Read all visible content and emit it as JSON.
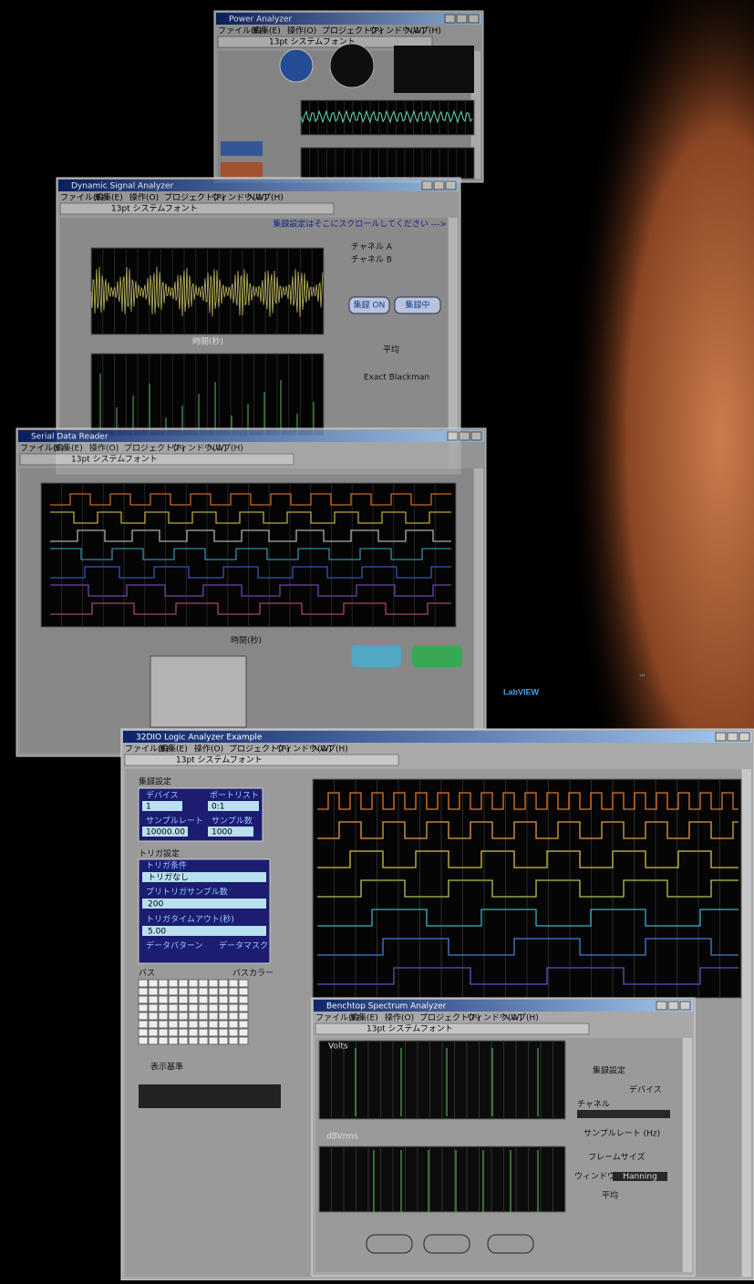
{
  "logo": {
    "name": "LabVIEW",
    "mark": "™"
  },
  "menu": [
    "ファイル(F)",
    "編集(E)",
    "操作(O)",
    "プロジェクト(P)",
    "ウィンドウ(W)",
    "ヘルプ(H)"
  ],
  "toolbar_font": "13pt システムフォント",
  "windows": [
    {
      "title": "Power Analyzer"
    },
    {
      "title": "Dynamic Signal Analyzer"
    },
    {
      "title": "Serial Data Reader"
    },
    {
      "title": "32DIO Logic Analyzer Example"
    },
    {
      "title": "Benchtop Spectrum Analyzer"
    }
  ],
  "dynamic": {
    "scroll_hint": "集録設定はそこにスクロールしてください --->",
    "channel_a": "チャネル A",
    "channel_b": "チャネル B",
    "start": "集録 ON",
    "status": "集録中",
    "average": "平均",
    "window": "Exact Blackman",
    "axis_time": "時間(秒)"
  },
  "logic": {
    "acq_title": "集録設定",
    "device": "デバイス",
    "port_list": "ポートリスト",
    "device_value": "1",
    "port_value": "0:1",
    "rate": "サンプルレート",
    "samples": "サンプル数",
    "rate_value": "10000.00",
    "samples_value": "1000",
    "trig_title": "トリガ設定",
    "trig_cond": "トリガ条件",
    "trig_value": "トリガなし",
    "pretrig": "プリトリガサンプル数",
    "pretrig_value": "200",
    "timeout": "トリガタイムアウト(秒)",
    "timeout_value": "5.00",
    "pattern": "データパターン",
    "mask": "データマスク",
    "bus": "バス",
    "bus_color": "バスカラー",
    "display": "表示基準"
  },
  "spectrum": {
    "volts": "Volts",
    "dbv": "dBVrms",
    "acq_title": "集録設定",
    "device": "デバイス",
    "channel": "チャネル",
    "rate": "サンプルレート (Hz)",
    "frame": "フレームサイズ",
    "window": "ウィンドウ",
    "window_value": "Hanning",
    "average": "平均"
  }
}
